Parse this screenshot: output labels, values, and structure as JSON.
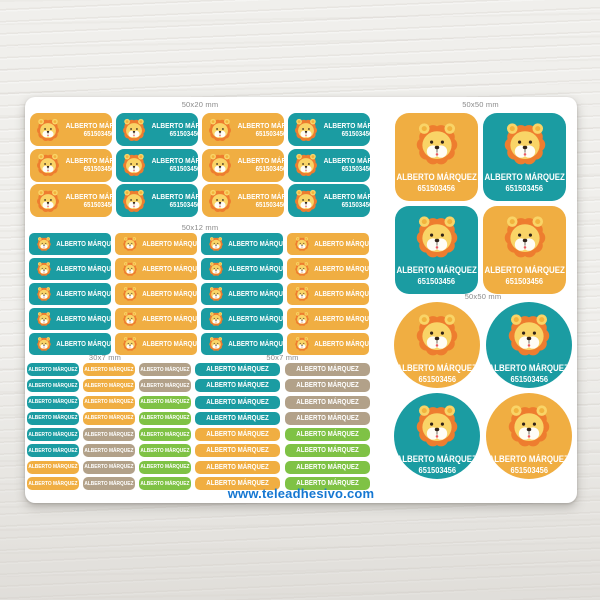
{
  "product": {
    "name_text": "ALBERTO MÁRQUEZ",
    "phone_text": "651503456",
    "footer_url": "www.teleadhesivo.com"
  },
  "colors": {
    "orange": "#f0ae42",
    "teal": "#1b9ca2",
    "tan": "#b2a189",
    "green": "#7fc245",
    "label_gray": "#8a8a8a",
    "url_blue": "#1577d2",
    "lion_mane": "#ee7d2f",
    "lion_face": "#f9d467",
    "lion_muzzle": "#fffdf6",
    "lion_dark": "#302318",
    "lion_tongue": "#e8595f"
  },
  "icons": {
    "lion": "lion-icon"
  },
  "sections": [
    {
      "label": "50x20 mm",
      "kind": "bar2",
      "css": "s-5020",
      "sticker_name": "name-sticker-50x20",
      "cells": [
        [
          "orange",
          "teal",
          "orange",
          "teal"
        ],
        [
          "orange",
          "teal",
          "orange",
          "teal"
        ],
        [
          "orange",
          "teal",
          "orange",
          "teal"
        ]
      ]
    },
    {
      "label": "50x50 mm",
      "kind": "big",
      "css": "s-sq",
      "sticker_name": "name-sticker-50x50-square",
      "cells": [
        [
          "orange",
          "teal"
        ],
        [
          "teal",
          "orange"
        ]
      ]
    },
    {
      "label": "50x12 mm",
      "kind": "bar1",
      "css": "s-5012",
      "sticker_name": "name-sticker-50x12",
      "cells": [
        [
          "teal",
          "orange",
          "teal",
          "orange"
        ],
        [
          "teal",
          "orange",
          "teal",
          "orange"
        ],
        [
          "teal",
          "orange",
          "teal",
          "orange"
        ],
        [
          "teal",
          "orange",
          "teal",
          "orange"
        ],
        [
          "teal",
          "orange",
          "teal",
          "orange"
        ]
      ]
    },
    {
      "label": "50x50 mm",
      "kind": "big",
      "css": "s-ci",
      "sticker_name": "name-sticker-50x50-circle",
      "cells": [
        [
          "orange",
          "teal"
        ],
        [
          "teal",
          "orange"
        ]
      ]
    },
    {
      "label": "30x7 mm",
      "kind": "mini",
      "css": "s-m30",
      "sticker_name": "name-sticker-30x7",
      "cells": [
        [
          "teal",
          "orange",
          "tan"
        ],
        [
          "teal",
          "orange",
          "tan"
        ],
        [
          "teal",
          "orange",
          "green"
        ],
        [
          "teal",
          "orange",
          "green"
        ],
        [
          "teal",
          "tan",
          "green"
        ],
        [
          "teal",
          "tan",
          "green"
        ],
        [
          "orange",
          "tan",
          "green"
        ],
        [
          "orange",
          "tan",
          "green"
        ]
      ]
    },
    {
      "label": "50x7 mm",
      "kind": "mini",
      "css": "s-m50",
      "sticker_name": "name-sticker-50x7",
      "cells": [
        [
          "teal",
          "tan"
        ],
        [
          "teal",
          "tan"
        ],
        [
          "teal",
          "tan"
        ],
        [
          "teal",
          "tan"
        ],
        [
          "orange",
          "green"
        ],
        [
          "orange",
          "green"
        ],
        [
          "orange",
          "green"
        ],
        [
          "orange",
          "green"
        ]
      ]
    }
  ]
}
